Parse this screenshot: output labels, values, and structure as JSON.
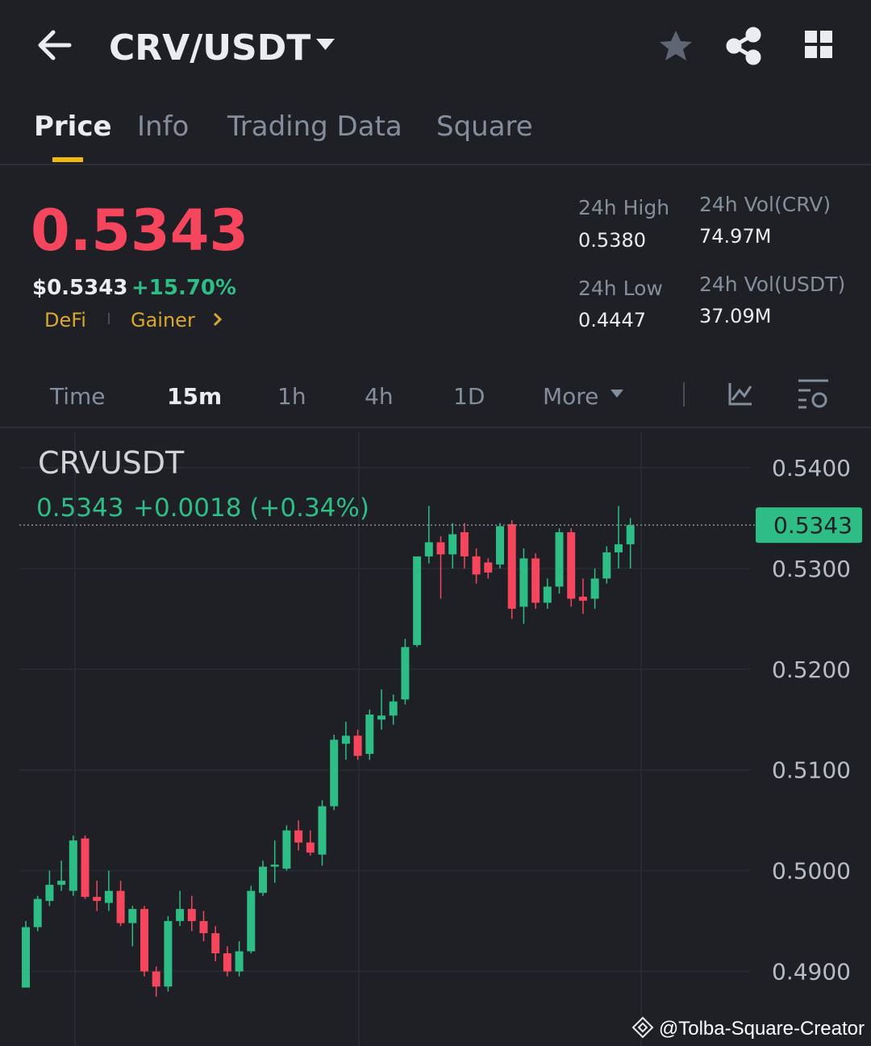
{
  "header": {
    "pair": "CRV/USDT"
  },
  "tabs": [
    "Price",
    "Info",
    "Trading Data",
    "Square"
  ],
  "price": {
    "last": "0.5343",
    "usd": "$0.5343",
    "change": "+15.70%",
    "tags": [
      "DeFi",
      "Gainer"
    ]
  },
  "stats": [
    {
      "label": "24h High",
      "value": "0.5380"
    },
    {
      "label": "24h Vol(CRV)",
      "value": "74.97M"
    },
    {
      "label": "24h Low",
      "value": "0.4447"
    },
    {
      "label": "24h Vol(USDT)",
      "value": "37.09M"
    }
  ],
  "intervals": [
    "Time",
    "15m",
    "1h",
    "4h",
    "1D",
    "More"
  ],
  "chart_data": {
    "type": "candlestick",
    "title": "CRVUSDT",
    "last_price_text": "0.5343",
    "change_text": "+0.0018 (+0.34%)",
    "current_price": 0.5343,
    "up_color": "#2ebd85",
    "down_color": "#f6465d",
    "ylim": [
      0.4826,
      0.5436
    ],
    "yticks": [
      {
        "value": 0.49,
        "label": "0.4900"
      },
      {
        "value": 0.5,
        "label": "0.5000"
      },
      {
        "value": 0.51,
        "label": "0.5100"
      },
      {
        "value": 0.52,
        "label": "0.5200"
      },
      {
        "value": 0.53,
        "label": "0.5300"
      },
      {
        "value": 0.54,
        "label": "0.5400"
      }
    ],
    "grid": true,
    "open": [
      0.4884,
      0.4944,
      0.497,
      0.4986,
      0.498,
      0.5032,
      0.4974,
      0.4968,
      0.498,
      0.4948,
      0.4962,
      0.49,
      0.4885,
      0.495,
      0.4962,
      0.495,
      0.4938,
      0.4918,
      0.49,
      0.492,
      0.4978,
      0.5004,
      0.5002,
      0.504,
      0.5028,
      0.5016,
      0.5064,
      0.5126,
      0.5134,
      0.5116,
      0.515,
      0.5154,
      0.517,
      0.5224,
      0.5312,
      0.5326,
      0.5314,
      0.5336,
      0.5312,
      0.5306,
      0.5304,
      0.5344,
      0.5262,
      0.531,
      0.5266,
      0.5282,
      0.5336,
      0.5272,
      0.527,
      0.529,
      0.5316,
      0.5324
    ],
    "high": [
      0.495,
      0.4975,
      0.5,
      0.501,
      0.5035,
      0.5035,
      0.499,
      0.5,
      0.499,
      0.4965,
      0.4965,
      0.4905,
      0.4955,
      0.498,
      0.4975,
      0.496,
      0.4945,
      0.4925,
      0.493,
      0.4985,
      0.501,
      0.503,
      0.5045,
      0.505,
      0.504,
      0.507,
      0.5135,
      0.5148,
      0.514,
      0.516,
      0.518,
      0.5175,
      0.523,
      0.531,
      0.5362,
      0.5332,
      0.5345,
      0.5345,
      0.532,
      0.531,
      0.5345,
      0.5348,
      0.532,
      0.5315,
      0.529,
      0.534,
      0.534,
      0.529,
      0.53,
      0.5322,
      0.5362,
      0.535
    ],
    "low": [
      0.4884,
      0.494,
      0.4965,
      0.498,
      0.4975,
      0.4972,
      0.496,
      0.496,
      0.4945,
      0.4925,
      0.4895,
      0.4875,
      0.488,
      0.4945,
      0.494,
      0.493,
      0.491,
      0.4895,
      0.4895,
      0.4918,
      0.4975,
      0.4988,
      0.5,
      0.502,
      0.5015,
      0.5005,
      0.506,
      0.511,
      0.511,
      0.511,
      0.514,
      0.5145,
      0.5165,
      0.5222,
      0.5305,
      0.527,
      0.53,
      0.53,
      0.5285,
      0.529,
      0.53,
      0.525,
      0.5245,
      0.526,
      0.526,
      0.5275,
      0.5262,
      0.5255,
      0.526,
      0.5285,
      0.53,
      0.53
    ],
    "close": [
      0.4944,
      0.4972,
      0.4986,
      0.499,
      0.503,
      0.4974,
      0.497,
      0.498,
      0.4948,
      0.4962,
      0.49,
      0.4885,
      0.495,
      0.4962,
      0.495,
      0.4938,
      0.4918,
      0.49,
      0.492,
      0.498,
      0.5004,
      0.5006,
      0.504,
      0.5028,
      0.5018,
      0.5064,
      0.513,
      0.5134,
      0.5114,
      0.5155,
      0.5154,
      0.5168,
      0.5222,
      0.5312,
      0.5326,
      0.5314,
      0.5334,
      0.5312,
      0.5294,
      0.5296,
      0.5342,
      0.526,
      0.531,
      0.5266,
      0.5282,
      0.5336,
      0.527,
      0.5268,
      0.529,
      0.5316,
      0.5324,
      0.5343
    ]
  },
  "watermark": "@Tolba-Square-Creator"
}
